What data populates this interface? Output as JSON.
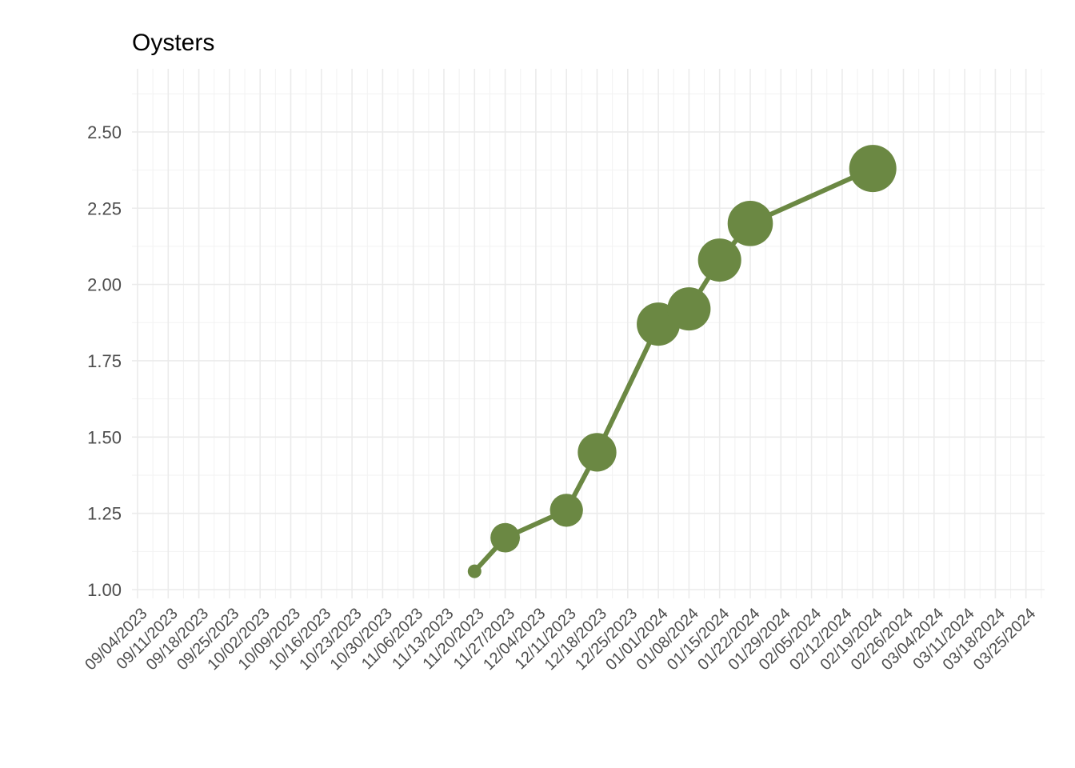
{
  "chart_data": {
    "type": "line",
    "title": "Oysters",
    "xlabel": "",
    "ylabel": "",
    "x_ticks": [
      "09/04/2023",
      "09/11/2023",
      "09/18/2023",
      "09/25/2023",
      "10/02/2023",
      "10/09/2023",
      "10/16/2023",
      "10/23/2023",
      "10/30/2023",
      "11/06/2023",
      "11/13/2023",
      "11/20/2023",
      "11/27/2023",
      "12/04/2023",
      "12/11/2023",
      "12/18/2023",
      "12/25/2023",
      "01/01/2024",
      "01/08/2024",
      "01/15/2024",
      "01/22/2024",
      "01/29/2024",
      "02/05/2024",
      "02/12/2024",
      "02/19/2024",
      "02/26/2024",
      "03/04/2024",
      "03/11/2024",
      "03/18/2024",
      "03/25/2024"
    ],
    "y_ticks": [
      "1.00",
      "1.25",
      "1.50",
      "1.75",
      "2.00",
      "2.25",
      "2.50"
    ],
    "xlim": [
      "09/04/2023",
      "03/25/2024"
    ],
    "ylim": [
      1.0,
      2.7
    ],
    "grid": true,
    "color": "#6b8843",
    "legend": "none",
    "series": [
      {
        "x": [
          "11/20/2023",
          "11/27/2023",
          "12/11/2023",
          "12/18/2023",
          "01/01/2024",
          "01/08/2024",
          "01/15/2024",
          "01/22/2024",
          "02/19/2024"
        ],
        "y": [
          1.06,
          1.17,
          1.26,
          1.45,
          1.87,
          1.92,
          2.08,
          2.2,
          2.38
        ],
        "size": [
          1,
          3,
          4,
          6,
          8,
          8,
          8,
          9,
          10
        ]
      }
    ]
  }
}
